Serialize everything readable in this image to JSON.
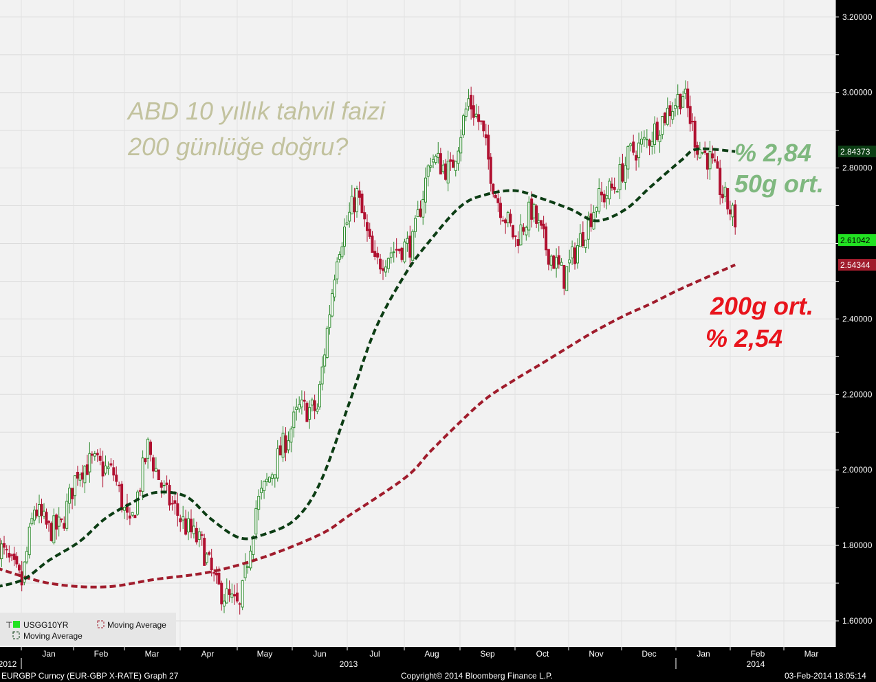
{
  "chart_data": {
    "type": "candlestick",
    "title": "ABD 10 yıllık tahvil faizi",
    "subtitle": "200 günlüğe doğru?",
    "ylim": [
      1.55,
      3.25
    ],
    "yticks": [
      "3.20000",
      "3.00000",
      "2.80000",
      "2.40000",
      "2.20000",
      "2.00000",
      "1.80000",
      "1.60000"
    ],
    "xlabels": [
      "Jan",
      "Feb",
      "Mar",
      "Apr",
      "May",
      "Jun",
      "Jul",
      "Aug",
      "Sep",
      "Oct",
      "Nov",
      "Dec",
      "Jan",
      "Feb",
      "Mar"
    ],
    "year_labels": [
      "2012",
      "2013",
      "2014"
    ],
    "grid": true,
    "legend_position": "bottom-left",
    "legend": [
      "USGG10YR",
      "Moving Average",
      "Moving Average"
    ],
    "series": [
      {
        "name": "USGG10YR",
        "color_up": "#2e8b2e",
        "color_down": "#b01030",
        "close_path": [
          [
            "2012-12-17",
            1.81
          ],
          [
            "2012-12-31",
            1.7
          ],
          [
            "2013-01-07",
            1.9
          ],
          [
            "2013-01-15",
            1.84
          ],
          [
            "2013-01-22",
            1.85
          ],
          [
            "2013-01-31",
            2.0
          ],
          [
            "2013-02-08",
            2.02
          ],
          [
            "2013-02-20",
            1.99
          ],
          [
            "2013-03-01",
            1.84
          ],
          [
            "2013-03-11",
            2.06
          ],
          [
            "2013-03-20",
            1.94
          ],
          [
            "2013-04-01",
            1.85
          ],
          [
            "2013-04-10",
            1.8
          ],
          [
            "2013-04-18",
            1.69
          ],
          [
            "2013-05-01",
            1.63
          ],
          [
            "2013-05-10",
            1.9
          ],
          [
            "2013-05-22",
            2.03
          ],
          [
            "2013-06-03",
            2.16
          ],
          [
            "2013-06-13",
            2.16
          ],
          [
            "2013-06-24",
            2.58
          ],
          [
            "2013-07-05",
            2.73
          ],
          [
            "2013-07-15",
            2.54
          ],
          [
            "2013-07-24",
            2.58
          ],
          [
            "2013-08-05",
            2.6
          ],
          [
            "2013-08-15",
            2.83
          ],
          [
            "2013-08-26",
            2.79
          ],
          [
            "2013-09-05",
            2.98
          ],
          [
            "2013-09-12",
            2.91
          ],
          [
            "2013-09-20",
            2.73
          ],
          [
            "2013-10-01",
            2.61
          ],
          [
            "2013-10-10",
            2.69
          ],
          [
            "2013-10-18",
            2.59
          ],
          [
            "2013-10-28",
            2.51
          ],
          [
            "2013-11-06",
            2.61
          ],
          [
            "2013-11-15",
            2.71
          ],
          [
            "2013-11-25",
            2.75
          ],
          [
            "2013-12-04",
            2.84
          ],
          [
            "2013-12-13",
            2.87
          ],
          [
            "2013-12-23",
            2.94
          ],
          [
            "2014-01-02",
            3.0
          ],
          [
            "2014-01-10",
            2.86
          ],
          [
            "2014-01-17",
            2.82
          ],
          [
            "2014-01-24",
            2.73
          ],
          [
            "2014-01-31",
            2.66
          ]
        ]
      },
      {
        "name": "Moving Average",
        "color": "#0c3d14",
        "line_style": "dashed",
        "last_value": "2.84373",
        "points": [
          [
            "2012-12-17",
            1.69
          ],
          [
            "2013-01-01",
            1.71
          ],
          [
            "2013-01-15",
            1.76
          ],
          [
            "2013-02-01",
            1.81
          ],
          [
            "2013-02-15",
            1.87
          ],
          [
            "2013-03-01",
            1.91
          ],
          [
            "2013-03-15",
            1.94
          ],
          [
            "2013-04-01",
            1.93
          ],
          [
            "2013-04-15",
            1.87
          ],
          [
            "2013-05-01",
            1.82
          ],
          [
            "2013-05-15",
            1.83
          ],
          [
            "2013-06-01",
            1.87
          ],
          [
            "2013-06-15",
            1.97
          ],
          [
            "2013-07-01",
            2.18
          ],
          [
            "2013-07-15",
            2.37
          ],
          [
            "2013-08-01",
            2.52
          ],
          [
            "2013-08-15",
            2.61
          ],
          [
            "2013-09-01",
            2.7
          ],
          [
            "2013-09-15",
            2.73
          ],
          [
            "2013-10-01",
            2.74
          ],
          [
            "2013-10-15",
            2.72
          ],
          [
            "2013-11-01",
            2.69
          ],
          [
            "2013-11-15",
            2.66
          ],
          [
            "2013-12-01",
            2.69
          ],
          [
            "2013-12-15",
            2.75
          ],
          [
            "2014-01-01",
            2.82
          ],
          [
            "2014-01-10",
            2.85
          ],
          [
            "2014-01-31",
            2.84373
          ]
        ]
      },
      {
        "name": "Moving Average",
        "color": "#a01c2c",
        "line_style": "dashed",
        "last_value": "2.54344",
        "points": [
          [
            "2012-12-17",
            1.74
          ],
          [
            "2013-01-15",
            1.7
          ],
          [
            "2013-02-15",
            1.69
          ],
          [
            "2013-03-15",
            1.71
          ],
          [
            "2013-04-15",
            1.73
          ],
          [
            "2013-05-15",
            1.77
          ],
          [
            "2013-06-15",
            1.83
          ],
          [
            "2013-07-01",
            1.88
          ],
          [
            "2013-08-01",
            1.98
          ],
          [
            "2013-08-15",
            2.05
          ],
          [
            "2013-09-01",
            2.13
          ],
          [
            "2013-09-15",
            2.19
          ],
          [
            "2013-10-01",
            2.24
          ],
          [
            "2013-10-15",
            2.28
          ],
          [
            "2013-11-01",
            2.33
          ],
          [
            "2013-11-15",
            2.37
          ],
          [
            "2013-12-01",
            2.41
          ],
          [
            "2013-12-15",
            2.44
          ],
          [
            "2014-01-01",
            2.48
          ],
          [
            "2014-01-31",
            2.54344
          ]
        ]
      }
    ],
    "last_price": "2.61042",
    "annotations": {
      "green_line1": "% 2,84",
      "green_line2": "50g ort.",
      "red_line1": "200g ort.",
      "red_line2": "% 2,54"
    }
  },
  "footer": {
    "left": "EURGBP Curncy (EUR-GBP X-RATE) Graph 27",
    "center": "Copyright© 2014 Bloomberg Finance L.P.",
    "right": "03-Feb-2014 18:05:14"
  },
  "colors": {
    "plot_bg": "#f2f2f2",
    "axis_bg": "#000000",
    "up": "#2e8b2e",
    "down": "#b01030",
    "ma50": "#0c3d14",
    "ma200": "#a01c2c",
    "last_price_bg": "#22e222"
  }
}
